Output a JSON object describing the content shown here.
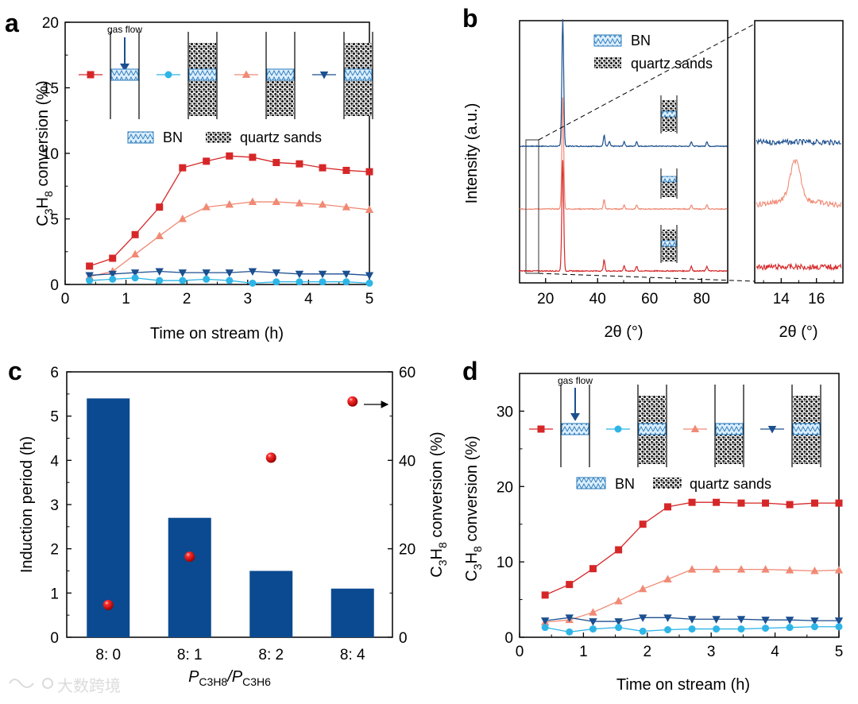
{
  "colors": {
    "red": "#d62728",
    "salmon": "#f08a75",
    "cyan": "#2eb5e6",
    "navy": "#1c4f8f",
    "bar": "#0b4a91",
    "bn_fill": "#dbeeff",
    "bn_stroke": "#2a79b8"
  },
  "legend": {
    "bn": "BN",
    "quartz": "quartz sands",
    "gas_flow": "gas flow"
  },
  "chart_data": [
    {
      "panel": "a",
      "type": "line",
      "xlabel": "Time on stream (h)",
      "ylabel": "C3H8 conversion (%)",
      "xlim": [
        0,
        5
      ],
      "ylim": [
        0,
        20
      ],
      "xticks": [
        "0",
        "1",
        "2",
        "3",
        "4",
        "5"
      ],
      "yticks": [
        "0",
        "5",
        "10",
        "15",
        "20"
      ],
      "x": [
        0.4,
        0.78,
        1.15,
        1.55,
        1.93,
        2.32,
        2.7,
        3.08,
        3.47,
        3.85,
        4.23,
        4.62,
        5.0
      ],
      "series": [
        {
          "marker": "square",
          "color": "#d62728",
          "values": [
            1.4,
            2.0,
            3.8,
            5.9,
            8.9,
            9.4,
            9.8,
            9.7,
            9.3,
            9.2,
            8.9,
            8.7,
            8.6
          ]
        },
        {
          "marker": "triangle-up",
          "color": "#f08a75",
          "values": [
            0.6,
            1.0,
            2.3,
            3.7,
            5.0,
            5.9,
            6.1,
            6.3,
            6.3,
            6.2,
            6.1,
            5.9,
            5.7
          ]
        },
        {
          "marker": "triangle-down",
          "color": "#1c4f8f",
          "values": [
            0.7,
            0.8,
            0.9,
            1.0,
            0.9,
            0.9,
            0.9,
            1.0,
            0.9,
            0.8,
            0.8,
            0.8,
            0.7
          ]
        },
        {
          "marker": "circle",
          "color": "#2eb5e6",
          "values": [
            0.3,
            0.4,
            0.5,
            0.3,
            0.3,
            0.4,
            0.3,
            0.1,
            0.2,
            0.2,
            0.2,
            0.2,
            0.1
          ]
        }
      ]
    },
    {
      "panel": "b",
      "type": "line",
      "xlabel": "2θ (°)",
      "ylabel": "Intensity (a.u.)",
      "xlim": [
        10,
        90
      ],
      "xticks": [
        "20",
        "40",
        "60",
        "80"
      ],
      "inset_xlabel": "2θ (°)",
      "inset_xlim": [
        12.5,
        17.5
      ],
      "inset_xticks": [
        "14",
        "16"
      ],
      "series": [
        {
          "color": "#1c4f8f",
          "peaks_2theta": [
            26.6,
            42.5,
            44.5,
            50.2,
            55.0,
            76.0,
            82.0
          ]
        },
        {
          "color": "#f08a75",
          "peaks_2theta": [
            26.6,
            42.5,
            50.2,
            55.0,
            76.0,
            82.0
          ],
          "inset_peak_2theta": 14.8
        },
        {
          "color": "#d62728",
          "peaks_2theta": [
            26.6,
            42.5,
            50.2,
            55.0,
            76.0,
            82.0
          ]
        }
      ]
    },
    {
      "panel": "c",
      "type": "bar",
      "categories": [
        "8: 0",
        "8: 1",
        "8: 2",
        "8: 4"
      ],
      "xlabel_main": "P",
      "xlabel_sub1": "C3H8",
      "xlabel_sep": "/P",
      "xlabel_sub2": "C3H6",
      "ylabel": "Induction period (h)",
      "y2label": "C3H8 conversion (%)",
      "ylim": [
        0,
        6
      ],
      "yticks": [
        "0",
        "1",
        "2",
        "3",
        "4",
        "5",
        "6"
      ],
      "y2lim": [
        0,
        60
      ],
      "y2ticks": [
        "0",
        "20",
        "40",
        "60"
      ],
      "values": [
        5.4,
        2.7,
        1.5,
        1.1
      ],
      "conversion_values": [
        7.3,
        18.2,
        40.6,
        53.3
      ]
    },
    {
      "panel": "d",
      "type": "line",
      "xlabel": "Time on stream (h)",
      "ylabel": "C3H8 conversion (%)",
      "xlim": [
        0,
        5
      ],
      "ylim": [
        0,
        35
      ],
      "xticks": [
        "0",
        "1",
        "2",
        "3",
        "4",
        "5"
      ],
      "yticks": [
        "0",
        "10",
        "20",
        "30"
      ],
      "x": [
        0.4,
        0.78,
        1.15,
        1.55,
        1.93,
        2.32,
        2.7,
        3.08,
        3.47,
        3.85,
        4.23,
        4.62,
        5.0
      ],
      "series": [
        {
          "marker": "square",
          "color": "#d62728",
          "values": [
            5.6,
            7.0,
            9.1,
            11.6,
            15.0,
            17.3,
            17.9,
            17.9,
            17.8,
            17.8,
            17.6,
            17.8,
            17.8
          ]
        },
        {
          "marker": "triangle-up",
          "color": "#f08a75",
          "values": [
            2.0,
            2.3,
            3.3,
            4.8,
            6.4,
            7.7,
            9.0,
            9.0,
            9.0,
            9.0,
            8.9,
            8.8,
            8.9
          ]
        },
        {
          "marker": "triangle-down",
          "color": "#1c4f8f",
          "values": [
            2.2,
            2.6,
            2.1,
            2.1,
            2.6,
            2.6,
            2.4,
            2.4,
            2.4,
            2.3,
            2.3,
            2.2,
            2.2
          ]
        },
        {
          "marker": "circle",
          "color": "#2eb5e6",
          "values": [
            1.3,
            0.7,
            1.1,
            1.3,
            0.8,
            1.0,
            1.1,
            1.1,
            1.1,
            1.2,
            1.3,
            1.4,
            1.4
          ]
        }
      ]
    }
  ],
  "panel_labels": [
    "a",
    "b",
    "c",
    "d"
  ],
  "watermark": "大数跨境"
}
